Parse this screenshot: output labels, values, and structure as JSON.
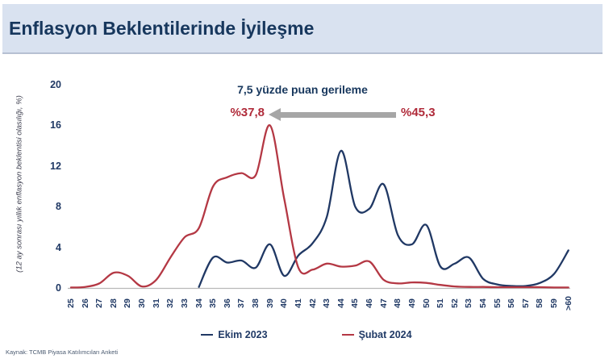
{
  "header": {
    "title": "Enflasyon Beklentilerinde İyileşme"
  },
  "annotation": {
    "text": "7,5 yüzde puan gerileme",
    "left_value": "%37,8",
    "right_value": "%45,3",
    "arrow_color": "#a6a6a6",
    "value_color": "#b02b3a"
  },
  "chart_data": {
    "type": "line",
    "title": "",
    "xlabel": "",
    "ylabel": "(12 ay sonrası yıllık enflasyon beklentisi olasılığı, %)",
    "ylim": [
      0,
      20
    ],
    "yticks": [
      0,
      4,
      8,
      12,
      16,
      20
    ],
    "grid": false,
    "legend_position": "bottom",
    "categories": [
      "25",
      "26",
      "27",
      "28",
      "29",
      "30",
      "31",
      "32",
      "33",
      "34",
      "35",
      "36",
      "37",
      "38",
      "39",
      "40",
      "41",
      "42",
      "43",
      "44",
      "45",
      "46",
      "47",
      "48",
      "49",
      "50",
      "51",
      "52",
      "53",
      "54",
      "55",
      "56",
      "57",
      "58",
      "59",
      ">60"
    ],
    "series": [
      {
        "name": "Ekim 2023",
        "color": "#203864",
        "values": [
          null,
          null,
          null,
          null,
          null,
          null,
          null,
          null,
          null,
          0.1,
          3.0,
          2.5,
          2.7,
          2.0,
          4.3,
          1.2,
          3.2,
          4.4,
          7.0,
          13.5,
          8.0,
          7.8,
          10.2,
          5.2,
          4.3,
          6.2,
          2.1,
          2.4,
          3.0,
          0.9,
          0.35,
          0.2,
          0.2,
          0.5,
          1.4,
          3.7
        ]
      },
      {
        "name": "Şubat 2024",
        "color": "#b43844",
        "values": [
          0.05,
          0.1,
          0.45,
          1.5,
          1.2,
          0.15,
          0.8,
          3.0,
          5.0,
          5.9,
          10.0,
          10.9,
          11.3,
          11.1,
          16.0,
          8.8,
          2.0,
          1.8,
          2.4,
          2.1,
          2.2,
          2.6,
          0.8,
          0.45,
          0.55,
          0.5,
          0.3,
          0.15,
          0.1,
          0.1,
          0.08,
          0.08,
          0.08,
          0.08,
          0.05,
          0.05
        ]
      }
    ],
    "axis_line_color": "#b9b9b9",
    "peak_annotations": {
      "subat_peak": "%37,8 at 39",
      "ekim_peak": "%45,3 at 44-45"
    }
  },
  "footer": {
    "source": "Kaynak: TCMB Piyasa Katılımcıları Anketi"
  }
}
